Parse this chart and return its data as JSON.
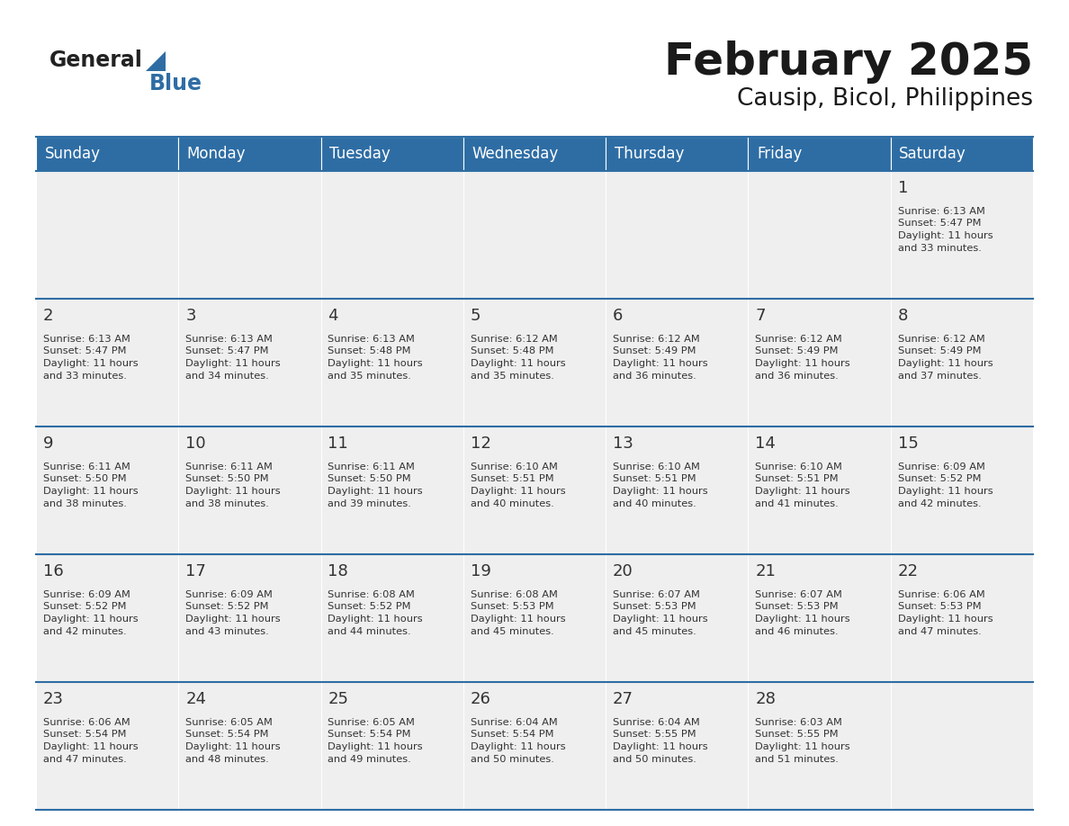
{
  "title": "February 2025",
  "subtitle": "Causip, Bicol, Philippines",
  "header_bg": "#2E6DA4",
  "header_text": "#FFFFFF",
  "cell_bg": "#EFEFEF",
  "border_color": "#2E6DA4",
  "days_of_week": [
    "Sunday",
    "Monday",
    "Tuesday",
    "Wednesday",
    "Thursday",
    "Friday",
    "Saturday"
  ],
  "title_color": "#1a1a1a",
  "subtitle_color": "#1a1a1a",
  "day_num_color": "#333333",
  "info_color": "#333333",
  "calendar_data": [
    [
      null,
      null,
      null,
      null,
      null,
      null,
      {
        "day": 1,
        "sunrise": "6:13 AM",
        "sunset": "5:47 PM",
        "daylight_h": "11 hours",
        "daylight_m": "and 33 minutes."
      }
    ],
    [
      {
        "day": 2,
        "sunrise": "6:13 AM",
        "sunset": "5:47 PM",
        "daylight_h": "11 hours",
        "daylight_m": "and 33 minutes."
      },
      {
        "day": 3,
        "sunrise": "6:13 AM",
        "sunset": "5:47 PM",
        "daylight_h": "11 hours",
        "daylight_m": "and 34 minutes."
      },
      {
        "day": 4,
        "sunrise": "6:13 AM",
        "sunset": "5:48 PM",
        "daylight_h": "11 hours",
        "daylight_m": "and 35 minutes."
      },
      {
        "day": 5,
        "sunrise": "6:12 AM",
        "sunset": "5:48 PM",
        "daylight_h": "11 hours",
        "daylight_m": "and 35 minutes."
      },
      {
        "day": 6,
        "sunrise": "6:12 AM",
        "sunset": "5:49 PM",
        "daylight_h": "11 hours",
        "daylight_m": "and 36 minutes."
      },
      {
        "day": 7,
        "sunrise": "6:12 AM",
        "sunset": "5:49 PM",
        "daylight_h": "11 hours",
        "daylight_m": "and 36 minutes."
      },
      {
        "day": 8,
        "sunrise": "6:12 AM",
        "sunset": "5:49 PM",
        "daylight_h": "11 hours",
        "daylight_m": "and 37 minutes."
      }
    ],
    [
      {
        "day": 9,
        "sunrise": "6:11 AM",
        "sunset": "5:50 PM",
        "daylight_h": "11 hours",
        "daylight_m": "and 38 minutes."
      },
      {
        "day": 10,
        "sunrise": "6:11 AM",
        "sunset": "5:50 PM",
        "daylight_h": "11 hours",
        "daylight_m": "and 38 minutes."
      },
      {
        "day": 11,
        "sunrise": "6:11 AM",
        "sunset": "5:50 PM",
        "daylight_h": "11 hours",
        "daylight_m": "and 39 minutes."
      },
      {
        "day": 12,
        "sunrise": "6:10 AM",
        "sunset": "5:51 PM",
        "daylight_h": "11 hours",
        "daylight_m": "and 40 minutes."
      },
      {
        "day": 13,
        "sunrise": "6:10 AM",
        "sunset": "5:51 PM",
        "daylight_h": "11 hours",
        "daylight_m": "and 40 minutes."
      },
      {
        "day": 14,
        "sunrise": "6:10 AM",
        "sunset": "5:51 PM",
        "daylight_h": "11 hours",
        "daylight_m": "and 41 minutes."
      },
      {
        "day": 15,
        "sunrise": "6:09 AM",
        "sunset": "5:52 PM",
        "daylight_h": "11 hours",
        "daylight_m": "and 42 minutes."
      }
    ],
    [
      {
        "day": 16,
        "sunrise": "6:09 AM",
        "sunset": "5:52 PM",
        "daylight_h": "11 hours",
        "daylight_m": "and 42 minutes."
      },
      {
        "day": 17,
        "sunrise": "6:09 AM",
        "sunset": "5:52 PM",
        "daylight_h": "11 hours",
        "daylight_m": "and 43 minutes."
      },
      {
        "day": 18,
        "sunrise": "6:08 AM",
        "sunset": "5:52 PM",
        "daylight_h": "11 hours",
        "daylight_m": "and 44 minutes."
      },
      {
        "day": 19,
        "sunrise": "6:08 AM",
        "sunset": "5:53 PM",
        "daylight_h": "11 hours",
        "daylight_m": "and 45 minutes."
      },
      {
        "day": 20,
        "sunrise": "6:07 AM",
        "sunset": "5:53 PM",
        "daylight_h": "11 hours",
        "daylight_m": "and 45 minutes."
      },
      {
        "day": 21,
        "sunrise": "6:07 AM",
        "sunset": "5:53 PM",
        "daylight_h": "11 hours",
        "daylight_m": "and 46 minutes."
      },
      {
        "day": 22,
        "sunrise": "6:06 AM",
        "sunset": "5:53 PM",
        "daylight_h": "11 hours",
        "daylight_m": "and 47 minutes."
      }
    ],
    [
      {
        "day": 23,
        "sunrise": "6:06 AM",
        "sunset": "5:54 PM",
        "daylight_h": "11 hours",
        "daylight_m": "and 47 minutes."
      },
      {
        "day": 24,
        "sunrise": "6:05 AM",
        "sunset": "5:54 PM",
        "daylight_h": "11 hours",
        "daylight_m": "and 48 minutes."
      },
      {
        "day": 25,
        "sunrise": "6:05 AM",
        "sunset": "5:54 PM",
        "daylight_h": "11 hours",
        "daylight_m": "and 49 minutes."
      },
      {
        "day": 26,
        "sunrise": "6:04 AM",
        "sunset": "5:54 PM",
        "daylight_h": "11 hours",
        "daylight_m": "and 50 minutes."
      },
      {
        "day": 27,
        "sunrise": "6:04 AM",
        "sunset": "5:55 PM",
        "daylight_h": "11 hours",
        "daylight_m": "and 50 minutes."
      },
      {
        "day": 28,
        "sunrise": "6:03 AM",
        "sunset": "5:55 PM",
        "daylight_h": "11 hours",
        "daylight_m": "and 51 minutes."
      },
      null
    ]
  ]
}
